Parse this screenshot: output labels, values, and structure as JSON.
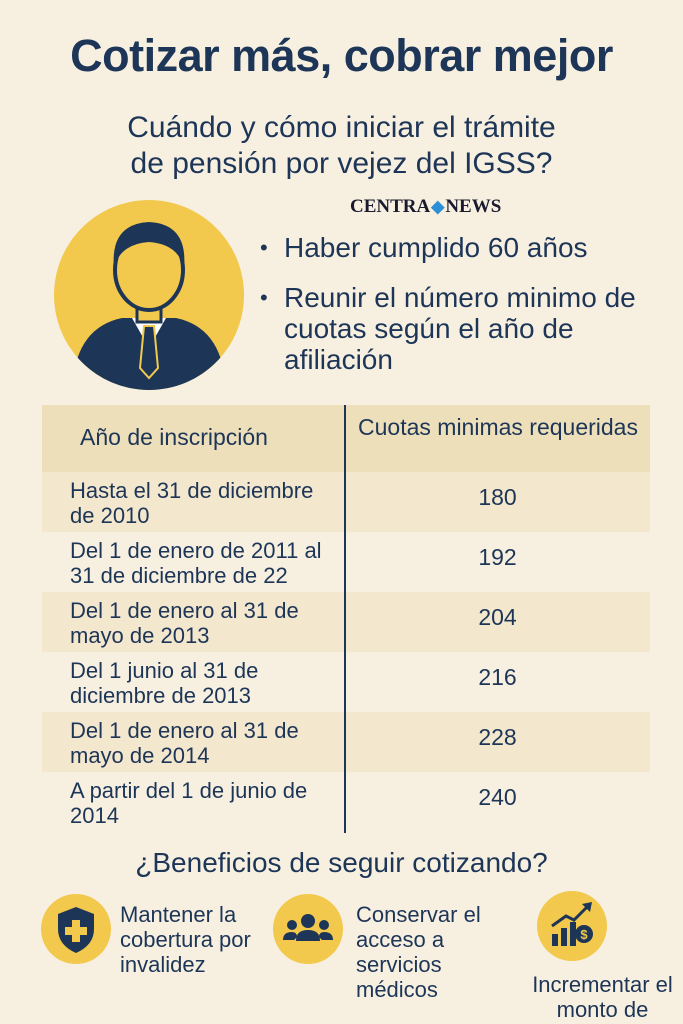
{
  "header": {
    "title": "Cotizar más, cobrar mejor",
    "subtitle": [
      "Cuándo y cómo iniciar el trámite",
      "de pensión por vejez del IGSS?"
    ],
    "brand": [
      "CENTRA",
      "NEWS"
    ]
  },
  "requirements": [
    "Haber cumplido 60 años",
    "Reunir el número minimo de cuotas según el año de afiliación"
  ],
  "table": {
    "headers": [
      "Año de inscripción",
      "Cuotas minimas requeridas"
    ],
    "rows": [
      [
        "Hasta el 31 de diciembre de 2010",
        180
      ],
      [
        "Del 1 de enero de 2011 al 31 de diciembre de 22",
        192
      ],
      [
        "Del 1 de enero al 31 de mayo de 2013",
        204
      ],
      [
        "Del 1 junio al 31 de diciembre de 2013",
        216
      ],
      [
        "Del 1 de enero al 31 de mayo de 2014",
        228
      ],
      [
        "A partir del 1 de junio de 2014",
        240
      ]
    ]
  },
  "benefits": {
    "heading": "¿Beneficios de seguir cotizando?",
    "items": [
      "Mantener la cobertura por invalidez",
      "Conservar el acceso a servicios médicos",
      "Incrementar el monto de"
    ]
  }
}
